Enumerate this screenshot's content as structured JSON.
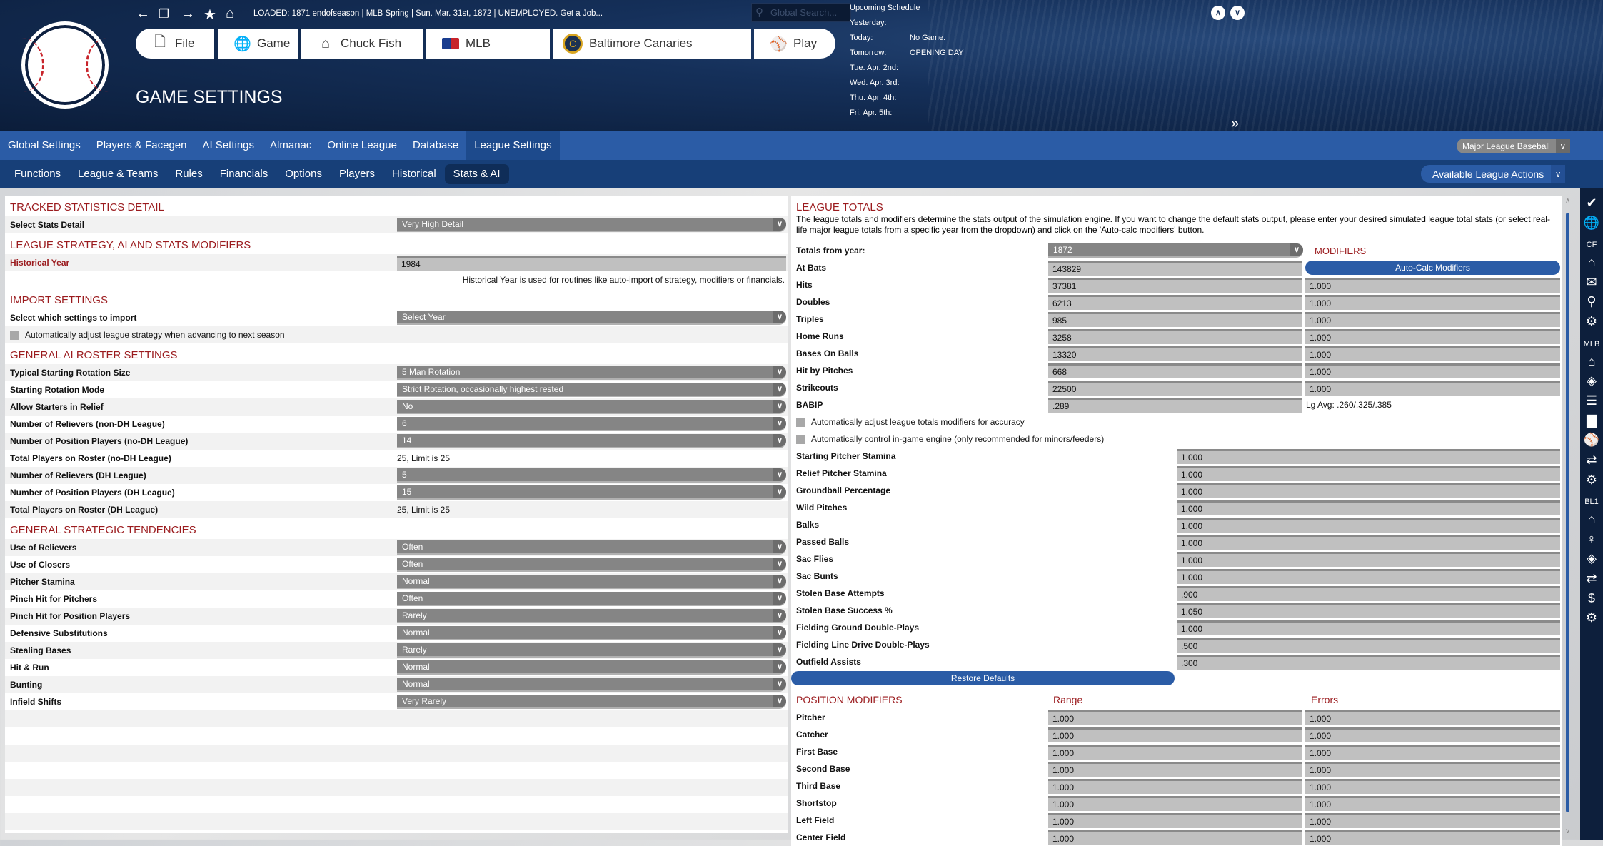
{
  "header": {
    "toolbar_icons": [
      "back-arrow-icon",
      "copy-icon",
      "forward-arrow-icon",
      "star-icon",
      "home-icon"
    ],
    "status": "LOADED: 1871 endofseason  |  MLB Spring  |  Sun. Mar. 31st, 1872  |  UNEMPLOYED. Get a Job...",
    "search_placeholder": "Global Search...",
    "nav_buttons": [
      {
        "label": "File",
        "icon": "file-icon"
      },
      {
        "label": "Game",
        "icon": "globe-icon"
      },
      {
        "label": "Chuck Fish",
        "icon": "home-icon"
      },
      {
        "label": "MLB",
        "icon": "mlb-logo-icon"
      },
      {
        "label": "Baltimore Canaries",
        "icon": "team-logo-icon"
      },
      {
        "label": "Play",
        "icon": "baseball-icon"
      }
    ],
    "page_title": "GAME SETTINGS",
    "schedule": {
      "title": "Upcoming Schedule",
      "rows": [
        [
          "Yesterday:",
          ""
        ],
        [
          "Today:",
          "No Game."
        ],
        [
          "Tomorrow:",
          "OPENING DAY"
        ],
        [
          "Tue. Apr. 2nd:",
          ""
        ],
        [
          "Wed. Apr. 3rd:",
          ""
        ],
        [
          "Thu. Apr. 4th:",
          ""
        ],
        [
          "Fri. Apr. 5th:",
          ""
        ]
      ]
    },
    "more": "»"
  },
  "nav1": {
    "tabs": [
      "Global Settings",
      "Players & Facegen",
      "AI Settings",
      "Almanac",
      "Online League",
      "Database",
      "League Settings"
    ],
    "active": 6,
    "league_select": "Major League Baseball"
  },
  "nav2": {
    "tabs": [
      "Functions",
      "League & Teams",
      "Rules",
      "Financials",
      "Options",
      "Players",
      "Historical",
      "Stats & AI"
    ],
    "active": 7,
    "actions": "Available League Actions"
  },
  "left": [
    {
      "heading": "TRACKED STATISTICS DETAIL"
    },
    {
      "label": "Select Stats Detail",
      "select": "Very High Detail"
    },
    {
      "heading": "LEAGUE STRATEGY, AI AND STATS MODIFIERS"
    },
    {
      "label": "Historical Year",
      "input": "1984",
      "red": true
    },
    {
      "note": "Historical Year is used for routines like auto-import of strategy, modifiers or financials."
    },
    {
      "heading": "IMPORT SETTINGS"
    },
    {
      "label": "Select which settings to import",
      "select": "Select Year"
    },
    {
      "checkbox": "Automatically adjust league strategy when advancing to next season",
      "checked": false
    },
    {
      "heading": "GENERAL AI ROSTER SETTINGS"
    },
    {
      "label": "Typical Starting Rotation Size",
      "select": "5 Man Rotation"
    },
    {
      "label": "Starting Rotation Mode",
      "select": "Strict Rotation, occasionally highest rested"
    },
    {
      "label": "Allow Starters in Relief",
      "select": "No"
    },
    {
      "label": "Number of Relievers (non-DH League)",
      "select": "6"
    },
    {
      "label": "Number of Position Players (no-DH League)",
      "select": "14"
    },
    {
      "label": "Total Players on Roster (no-DH League)",
      "text": "25, Limit is 25"
    },
    {
      "label": "Number of Relievers (DH League)",
      "select": "5"
    },
    {
      "label": "Number of Position Players (DH League)",
      "select": "15"
    },
    {
      "label": "Total Players on Roster (DH League)",
      "text": "25, Limit is 25"
    },
    {
      "heading": "GENERAL STRATEGIC TENDENCIES"
    },
    {
      "label": "Use of Relievers",
      "select": "Often"
    },
    {
      "label": "Use of Closers",
      "select": "Often"
    },
    {
      "label": "Pitcher Stamina",
      "select": "Normal"
    },
    {
      "label": "Pinch Hit for Pitchers",
      "select": "Often"
    },
    {
      "label": "Pinch Hit for Position Players",
      "select": "Rarely"
    },
    {
      "label": "Defensive Substitutions",
      "select": "Normal"
    },
    {
      "label": "Stealing Bases",
      "select": "Rarely"
    },
    {
      "label": "Hit & Run",
      "select": "Normal"
    },
    {
      "label": "Bunting",
      "select": "Normal"
    },
    {
      "label": "Infield Shifts",
      "select": "Very Rarely"
    }
  ],
  "right": {
    "heading": "LEAGUE TOTALS",
    "description": "The league totals and modifiers determine the stats output of the simulation engine. If you want to change the default stats output, please enter your desired simulated league total stats (or select real-life major league totals from a specific year from the dropdown) and click on the 'Auto-calc modifiers' button.",
    "totals_from_label": "Totals from year:",
    "totals_from_value": "1872",
    "modifiers_label": "MODIFIERS",
    "autocalc": "Auto-Calc Modifiers",
    "totals": [
      [
        "At Bats",
        "143829",
        null
      ],
      [
        "Hits",
        "37381",
        "1.000"
      ],
      [
        "Doubles",
        "6213",
        "1.000"
      ],
      [
        "Triples",
        "985",
        "1.000"
      ],
      [
        "Home Runs",
        "3258",
        "1.000"
      ],
      [
        "Bases On Balls",
        "13320",
        "1.000"
      ],
      [
        "Hit by Pitches",
        "668",
        "1.000"
      ],
      [
        "Strikeouts",
        "22500",
        "1.000"
      ],
      [
        "BABIP",
        ".289",
        "Lg Avg: .260/.325/.385"
      ]
    ],
    "checkboxes": [
      {
        "label": "Automatically adjust league totals modifiers for accuracy",
        "checked": false
      },
      {
        "label": "Automatically control in-game engine (only recommended for minors/feeders)",
        "checked": false
      }
    ],
    "modifiers": [
      [
        "Starting Pitcher Stamina",
        "1.000"
      ],
      [
        "Relief Pitcher Stamina",
        "1.000"
      ],
      [
        "Groundball Percentage",
        "1.000"
      ],
      [
        "Wild Pitches",
        "1.000"
      ],
      [
        "Balks",
        "1.000"
      ],
      [
        "Passed Balls",
        "1.000"
      ],
      [
        "Sac Flies",
        "1.000"
      ],
      [
        "Sac Bunts",
        "1.000"
      ],
      [
        "Stolen Base Attempts",
        ".900"
      ],
      [
        "Stolen Base Success %",
        "1.050"
      ],
      [
        "Fielding Ground Double-Plays",
        "1.000"
      ],
      [
        "Fielding Line Drive Double-Plays",
        ".500"
      ],
      [
        "Outfield Assists",
        ".300"
      ]
    ],
    "restore": "Restore Defaults",
    "position_heading": "POSITION MODIFIERS",
    "range_label": "Range",
    "errors_label": "Errors",
    "positions": [
      [
        "Pitcher",
        "1.000",
        "1.000"
      ],
      [
        "Catcher",
        "1.000",
        "1.000"
      ],
      [
        "First Base",
        "1.000",
        "1.000"
      ],
      [
        "Second Base",
        "1.000",
        "1.000"
      ],
      [
        "Third Base",
        "1.000",
        "1.000"
      ],
      [
        "Shortstop",
        "1.000",
        "1.000"
      ],
      [
        "Left Field",
        "1.000",
        "1.000"
      ],
      [
        "Center Field",
        "1.000",
        "1.000"
      ]
    ]
  },
  "sidebar": [
    {
      "icon": "check-icon"
    },
    {
      "icon": "globe-icon"
    },
    {
      "label": "CF"
    },
    {
      "icon": "home-icon"
    },
    {
      "icon": "mail-icon"
    },
    {
      "icon": "search-icon"
    },
    {
      "icon": "gear-icon"
    },
    {
      "label": "MLB"
    },
    {
      "icon": "home-icon"
    },
    {
      "icon": "diamond-icon"
    },
    {
      "icon": "list-icon"
    },
    {
      "icon": "bar-chart-icon"
    },
    {
      "icon": "baseball-icon"
    },
    {
      "icon": "transfer-icon"
    },
    {
      "icon": "gear-icon"
    },
    {
      "label": "BL1"
    },
    {
      "icon": "home-icon"
    },
    {
      "icon": "pitcher-icon"
    },
    {
      "icon": "diamond-icon"
    },
    {
      "icon": "transfer-icon"
    },
    {
      "icon": "dollar-icon"
    },
    {
      "icon": "gear-icon"
    }
  ],
  "colors": {
    "accent": "#2b5ca6",
    "heading": "#9b1b1e",
    "header_bg": "#15305a",
    "nav2_bg": "#173f78"
  }
}
